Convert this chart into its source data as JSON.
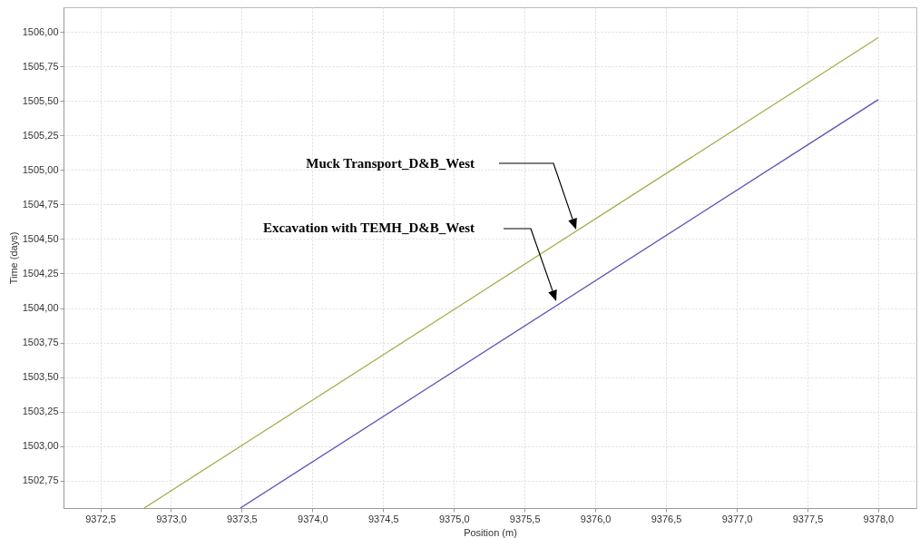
{
  "chart_data": {
    "type": "line",
    "xlabel": "Position (m)",
    "ylabel": "Time (days)",
    "xlim": [
      9372.24,
      9378.27
    ],
    "ylim": [
      1502.55,
      1506.18
    ],
    "xticks": [
      {
        "value": 9372.5,
        "label": "9372,5"
      },
      {
        "value": 9373,
        "label": "9373,0"
      },
      {
        "value": 9373.5,
        "label": "9373,5"
      },
      {
        "value": 9374,
        "label": "9374,0"
      },
      {
        "value": 9374.5,
        "label": "9374,5"
      },
      {
        "value": 9375,
        "label": "9375,0"
      },
      {
        "value": 9375.5,
        "label": "9375,5"
      },
      {
        "value": 9376,
        "label": "9376,0"
      },
      {
        "value": 9376.5,
        "label": "9376,5"
      },
      {
        "value": 9377,
        "label": "9377,0"
      },
      {
        "value": 9377.5,
        "label": "9377,5"
      },
      {
        "value": 9378,
        "label": "9378,0"
      }
    ],
    "yticks": [
      {
        "value": 1502.75,
        "label": "1502,75"
      },
      {
        "value": 1503,
        "label": "1503,00"
      },
      {
        "value": 1503.25,
        "label": "1503,25"
      },
      {
        "value": 1503.5,
        "label": "1503,50"
      },
      {
        "value": 1503.75,
        "label": "1503,75"
      },
      {
        "value": 1504,
        "label": "1504,00"
      },
      {
        "value": 1504.25,
        "label": "1504,25"
      },
      {
        "value": 1504.5,
        "label": "1504,50"
      },
      {
        "value": 1504.75,
        "label": "1504,75"
      },
      {
        "value": 1505,
        "label": "1505,00"
      },
      {
        "value": 1505.25,
        "label": "1505,25"
      },
      {
        "value": 1505.5,
        "label": "1505,50"
      },
      {
        "value": 1505.75,
        "label": "1505,75"
      },
      {
        "value": 1506,
        "label": "1506,00"
      }
    ],
    "grid": true,
    "marker": "none",
    "line_style": "solid",
    "series": [
      {
        "color": "#a8ab4f",
        "x": [
          9372.81,
          9378.0
        ],
        "values": [
          1502.55,
          1505.96
        ]
      },
      {
        "color": "#5b52b5",
        "x": [
          9373.49,
          9378.0
        ],
        "values": [
          1502.55,
          1505.51
        ]
      }
    ],
    "annotations": [
      "Muck Transport_D&B_West",
      "Excavation with TEMH_D&B_West"
    ]
  }
}
